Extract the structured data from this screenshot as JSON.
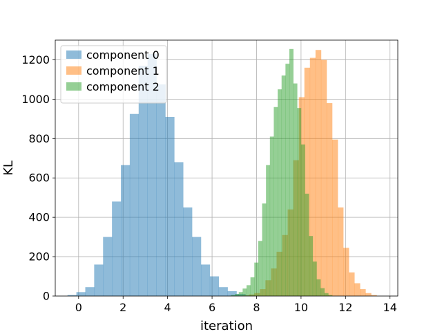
{
  "chart_data": {
    "type": "histogram",
    "title": "",
    "xlabel": "iteration",
    "ylabel": "KL",
    "xlim": [
      -1.05,
      14.35
    ],
    "ylim": [
      0,
      1300
    ],
    "x_ticks": [
      0,
      2,
      4,
      6,
      8,
      10,
      12,
      14
    ],
    "y_ticks": [
      0,
      200,
      400,
      600,
      800,
      1000,
      1200
    ],
    "grid": true,
    "legend_placement": "upper-left",
    "series": [
      {
        "name": "component 0",
        "color": "#1f77b4",
        "alpha": 0.5,
        "bin_start": -0.5,
        "bin_width": 0.4,
        "counts": [
          5,
          20,
          45,
          160,
          300,
          480,
          665,
          925,
          1170,
          1230,
          1075,
          910,
          680,
          450,
          300,
          160,
          100,
          45,
          25,
          10,
          3
        ]
      },
      {
        "name": "component 1",
        "color": "#ff7f0e",
        "alpha": 0.5,
        "bin_start": 7.4,
        "bin_width": 0.25,
        "counts": [
          3,
          8,
          15,
          35,
          80,
          140,
          225,
          310,
          440,
          690,
          1010,
          1160,
          1210,
          1250,
          1200,
          980,
          795,
          450,
          245,
          120,
          65,
          35,
          15,
          5
        ]
      },
      {
        "name": "component 2",
        "color": "#2ca02c",
        "alpha": 0.5,
        "bin_start": 6.85,
        "bin_width": 0.175,
        "counts": [
          5,
          10,
          20,
          38,
          55,
          95,
          170,
          280,
          470,
          665,
          810,
          960,
          1050,
          1120,
          1180,
          1255,
          1080,
          955,
          770,
          520,
          305,
          175,
          85,
          40,
          15,
          5
        ]
      }
    ]
  }
}
